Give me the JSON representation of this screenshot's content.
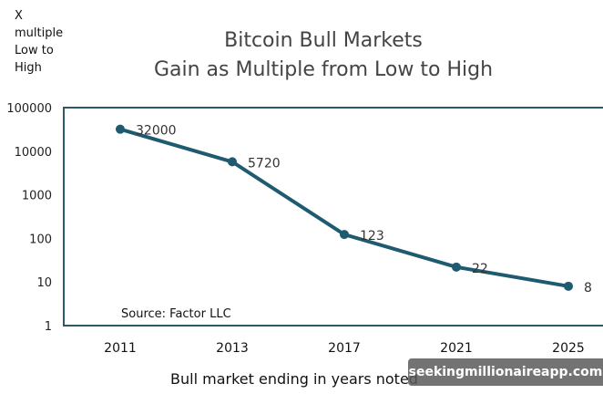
{
  "chart_data": {
    "type": "line",
    "title": "Bitcoin Bull Markets",
    "subtitle": "Gain as Multiple from Low to High",
    "ylabel": "X multiple Low to High",
    "xlabel": "Bull market ending in years noted",
    "categories": [
      "2011",
      "2013",
      "2017",
      "2021",
      "2025"
    ],
    "values": [
      32000,
      5720,
      123,
      22,
      8
    ],
    "data_labels": [
      "32000",
      "5720",
      "123",
      "22",
      "8"
    ],
    "y_scale": "log",
    "ylim": [
      1,
      100000
    ],
    "y_ticks": [
      "1",
      "10",
      "100",
      "1000",
      "10000",
      "100000"
    ],
    "grid": false,
    "annotation": "Source: Factor LLC",
    "line_color": "#1f5b70",
    "frame_color": "#2d5866"
  },
  "watermark": "seekingmillionaireapp.com"
}
